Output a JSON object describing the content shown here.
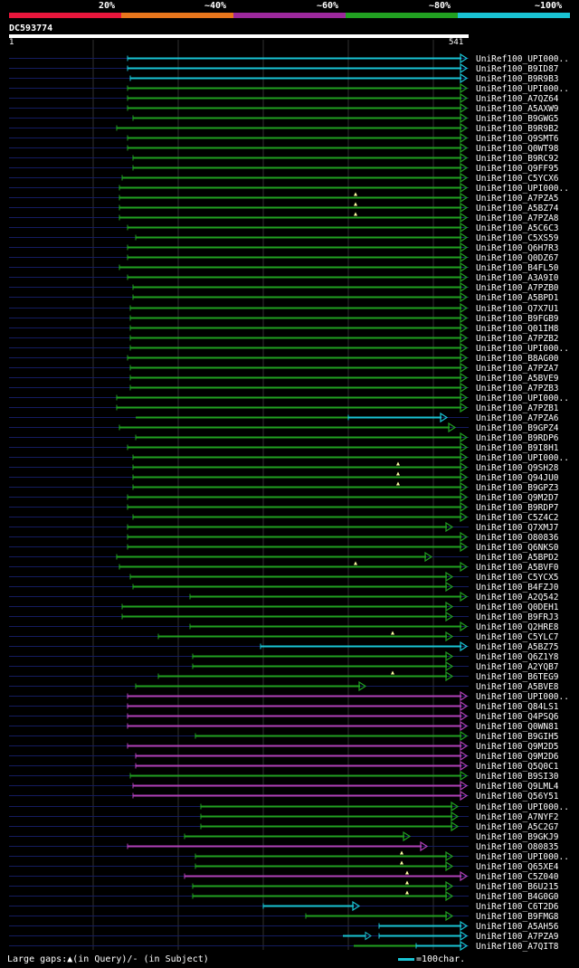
{
  "legend": {
    "labels": [
      "20%",
      "~40%",
      "~60%",
      "~80%",
      "~100%"
    ],
    "colors": [
      "#e8163c",
      "#e8761c",
      "#9c289c",
      "#21a021",
      "#19c3d3"
    ]
  },
  "query": {
    "id": "DC593774",
    "start": "1",
    "end": "541"
  },
  "colors": {
    "cyan": "#19c3d3",
    "green": "#21a021",
    "magenta": "#b040b8",
    "navy": "#141c60",
    "grid": "#303030"
  },
  "hits": [
    {
      "name": "UniRef100_UPI000..",
      "color": "cyan",
      "start": 141,
      "end": 516
    },
    {
      "name": "UniRef100_B9ID87",
      "color": "cyan",
      "start": 141,
      "end": 516
    },
    {
      "name": "UniRef100_B9R9B3",
      "color": "cyan",
      "start": 144,
      "end": 516
    },
    {
      "name": "UniRef100_UPI000..",
      "color": "green",
      "start": 141,
      "end": 516
    },
    {
      "name": "UniRef100_A7QZ64",
      "color": "green",
      "start": 141,
      "end": 516
    },
    {
      "name": "UniRef100_A5AXW9",
      "color": "green",
      "start": 141,
      "end": 516
    },
    {
      "name": "UniRef100_B9GWG5",
      "color": "green",
      "start": 147,
      "end": 516
    },
    {
      "name": "UniRef100_B9R9B2",
      "color": "green",
      "start": 129,
      "end": 516
    },
    {
      "name": "UniRef100_Q9SMT6",
      "color": "green",
      "start": 141,
      "end": 516
    },
    {
      "name": "UniRef100_Q0WT98",
      "color": "green",
      "start": 141,
      "end": 516
    },
    {
      "name": "UniRef100_B9RC92",
      "color": "green",
      "start": 147,
      "end": 516
    },
    {
      "name": "UniRef100_Q9FF95",
      "color": "green",
      "start": 147,
      "end": 516
    },
    {
      "name": "UniRef100_C5YCX6",
      "color": "green",
      "start": 135,
      "end": 516
    },
    {
      "name": "UniRef100_UPI000..",
      "color": "green",
      "start": 132,
      "end": 516
    },
    {
      "name": "UniRef100_A7PZA5",
      "color": "green",
      "start": 132,
      "end": 516,
      "marks": [
        393
      ]
    },
    {
      "name": "UniRef100_A5BZ74",
      "color": "green",
      "start": 132,
      "end": 516,
      "marks": [
        393
      ]
    },
    {
      "name": "UniRef100_A7PZA8",
      "color": "green",
      "start": 132,
      "end": 516,
      "marks": [
        393
      ]
    },
    {
      "name": "UniRef100_A5C6C3",
      "color": "green",
      "start": 141,
      "end": 516
    },
    {
      "name": "UniRef100_C5XS59",
      "color": "green",
      "start": 150,
      "end": 516
    },
    {
      "name": "UniRef100_Q6H7R3",
      "color": "green",
      "start": 141,
      "end": 516
    },
    {
      "name": "UniRef100_Q0DZ67",
      "color": "green",
      "start": 141,
      "end": 516
    },
    {
      "name": "UniRef100_B4FL50",
      "color": "green",
      "start": 132,
      "end": 516
    },
    {
      "name": "UniRef100_A3A9I0",
      "color": "green",
      "start": 141,
      "end": 516
    },
    {
      "name": "UniRef100_A7PZB0",
      "color": "green",
      "start": 147,
      "end": 516
    },
    {
      "name": "UniRef100_A5BPD1",
      "color": "green",
      "start": 147,
      "end": 516
    },
    {
      "name": "UniRef100_Q7X7U1",
      "color": "green",
      "start": 144,
      "end": 516
    },
    {
      "name": "UniRef100_B9FGB9",
      "color": "green",
      "start": 144,
      "end": 516
    },
    {
      "name": "UniRef100_Q01IH8",
      "color": "green",
      "start": 144,
      "end": 516
    },
    {
      "name": "UniRef100_A7PZB2",
      "color": "green",
      "start": 144,
      "end": 516
    },
    {
      "name": "UniRef100_UPI000..",
      "color": "green",
      "start": 144,
      "end": 516
    },
    {
      "name": "UniRef100_B8AG00",
      "color": "green",
      "start": 141,
      "end": 516
    },
    {
      "name": "UniRef100_A7PZA7",
      "color": "green",
      "start": 144,
      "end": 516
    },
    {
      "name": "UniRef100_A5BVE9",
      "color": "green",
      "start": 144,
      "end": 516
    },
    {
      "name": "UniRef100_A7PZB3",
      "color": "green",
      "start": 144,
      "end": 516
    },
    {
      "name": "UniRef100_UPI000..",
      "color": "green",
      "start": 129,
      "end": 516
    },
    {
      "name": "UniRef100_A7PZB1",
      "color": "green",
      "start": 129,
      "end": 516
    },
    {
      "name": "UniRef100_A7PZA6",
      "color": "cyan",
      "start": 385,
      "end": 494,
      "pre_start": 150,
      "pre_end": 385
    },
    {
      "name": "UniRef100_B9GPZ4",
      "color": "green",
      "start": 132,
      "end": 503
    },
    {
      "name": "UniRef100_B9RDP6",
      "color": "green",
      "start": 150,
      "end": 516
    },
    {
      "name": "UniRef100_B9I8H1",
      "color": "green",
      "start": 141,
      "end": 516
    },
    {
      "name": "UniRef100_UPI000..",
      "color": "green",
      "start": 147,
      "end": 516
    },
    {
      "name": "UniRef100_Q9SH28",
      "color": "green",
      "start": 147,
      "end": 516,
      "marks": [
        440
      ]
    },
    {
      "name": "UniRef100_Q94JU0",
      "color": "green",
      "start": 147,
      "end": 516,
      "marks": [
        440
      ]
    },
    {
      "name": "UniRef100_B9GPZ3",
      "color": "green",
      "start": 147,
      "end": 516,
      "marks": [
        440
      ]
    },
    {
      "name": "UniRef100_Q9M2D7",
      "color": "green",
      "start": 141,
      "end": 516
    },
    {
      "name": "UniRef100_B9RDP7",
      "color": "green",
      "start": 141,
      "end": 516
    },
    {
      "name": "UniRef100_C5Z4C2",
      "color": "green",
      "start": 147,
      "end": 516
    },
    {
      "name": "UniRef100_Q7XMJ7",
      "color": "green",
      "start": 141,
      "end": 500
    },
    {
      "name": "UniRef100_O80836",
      "color": "green",
      "start": 141,
      "end": 516
    },
    {
      "name": "UniRef100_Q6NKS0",
      "color": "green",
      "start": 141,
      "end": 516
    },
    {
      "name": "UniRef100_A5BPD2",
      "color": "green",
      "start": 129,
      "end": 477
    },
    {
      "name": "UniRef100_A5BVF0",
      "color": "green",
      "start": 132,
      "end": 516,
      "marks": [
        393
      ]
    },
    {
      "name": "UniRef100_C5YCX5",
      "color": "green",
      "start": 144,
      "end": 500
    },
    {
      "name": "UniRef100_B4FZJ0",
      "color": "green",
      "start": 147,
      "end": 500
    },
    {
      "name": "UniRef100_A2Q542",
      "color": "green",
      "start": 210,
      "end": 516
    },
    {
      "name": "UniRef100_Q0DEH1",
      "color": "green",
      "start": 135,
      "end": 500
    },
    {
      "name": "UniRef100_B9FRJ3",
      "color": "green",
      "start": 135,
      "end": 500
    },
    {
      "name": "UniRef100_Q2HRE8",
      "color": "green",
      "start": 210,
      "end": 516
    },
    {
      "name": "UniRef100_C5YLC7",
      "color": "green",
      "start": 175,
      "end": 500,
      "marks": [
        434
      ]
    },
    {
      "name": "UniRef100_A5BZ75",
      "color": "cyan",
      "start": 288,
      "end": 516
    },
    {
      "name": "UniRef100_Q6Z1Y8",
      "color": "green",
      "start": 213,
      "end": 500
    },
    {
      "name": "UniRef100_A2YQB7",
      "color": "green",
      "start": 213,
      "end": 500
    },
    {
      "name": "UniRef100_B6TEG9",
      "color": "green",
      "start": 175,
      "end": 500,
      "marks": [
        434
      ]
    },
    {
      "name": "UniRef100_A5BVE8",
      "color": "green",
      "start": 150,
      "end": 404
    },
    {
      "name": "UniRef100_UPI000..",
      "color": "magenta",
      "start": 141,
      "end": 516
    },
    {
      "name": "UniRef100_Q84LS1",
      "color": "magenta",
      "start": 141,
      "end": 516
    },
    {
      "name": "UniRef100_Q4PSQ6",
      "color": "magenta",
      "start": 141,
      "end": 516
    },
    {
      "name": "UniRef100_Q0WN81",
      "color": "magenta",
      "start": 141,
      "end": 516
    },
    {
      "name": "UniRef100_B9GIH5",
      "color": "green",
      "start": 216,
      "end": 516
    },
    {
      "name": "UniRef100_Q9M2D5",
      "color": "magenta",
      "start": 141,
      "end": 516
    },
    {
      "name": "UniRef100_Q9M2D6",
      "color": "magenta",
      "start": 150,
      "end": 516
    },
    {
      "name": "UniRef100_Q5Q0C1",
      "color": "magenta",
      "start": 150,
      "end": 516
    },
    {
      "name": "UniRef100_B9SI30",
      "color": "green",
      "start": 144,
      "end": 516
    },
    {
      "name": "UniRef100_Q9LML4",
      "color": "magenta",
      "start": 147,
      "end": 516
    },
    {
      "name": "UniRef100_Q56Y51",
      "color": "magenta",
      "start": 147,
      "end": 516
    },
    {
      "name": "UniRef100_UPI000..",
      "color": "green",
      "start": 222,
      "end": 506
    },
    {
      "name": "UniRef100_A7NYF2",
      "color": "green",
      "start": 222,
      "end": 506
    },
    {
      "name": "UniRef100_A5C2G7",
      "color": "green",
      "start": 222,
      "end": 506
    },
    {
      "name": "UniRef100_B9GKJ9",
      "color": "green",
      "start": 204,
      "end": 453
    },
    {
      "name": "UniRef100_O80835",
      "color": "magenta",
      "start": 141,
      "end": 472
    },
    {
      "name": "UniRef100_UPI000..",
      "color": "green",
      "start": 216,
      "end": 500,
      "marks": [
        444
      ]
    },
    {
      "name": "UniRef100_Q65XE4",
      "color": "green",
      "start": 216,
      "end": 500,
      "marks": [
        444
      ]
    },
    {
      "name": "UniRef100_C5Z040",
      "color": "magenta",
      "start": 204,
      "end": 516,
      "marks": [
        450
      ]
    },
    {
      "name": "UniRef100_B6U215",
      "color": "green",
      "start": 213,
      "end": 500,
      "marks": [
        450
      ]
    },
    {
      "name": "UniRef100_B4G0G0",
      "color": "green",
      "start": 213,
      "end": 500,
      "marks": [
        450
      ]
    },
    {
      "name": "UniRef100_C6T2D6",
      "color": "cyan",
      "start": 291,
      "end": 397
    },
    {
      "name": "UniRef100_B9FMG8",
      "color": "green",
      "start": 338,
      "end": 500
    },
    {
      "name": "UniRef100_A5AH56",
      "color": "cyan",
      "start": 419,
      "end": 516
    },
    {
      "name": "UniRef100_A7PZA9",
      "color": "cyan",
      "start": 419,
      "end": 516,
      "frag_start": 379,
      "frag_end": 404
    },
    {
      "name": "UniRef100_A7QIT8",
      "color": "cyan",
      "start": 460,
      "end": 516,
      "pre_start": 391,
      "pre_end": 460
    }
  ],
  "footer": {
    "gaps_text": "Large gaps:▲(in Query)/- (in Subject)",
    "scale_text": "=100char."
  }
}
